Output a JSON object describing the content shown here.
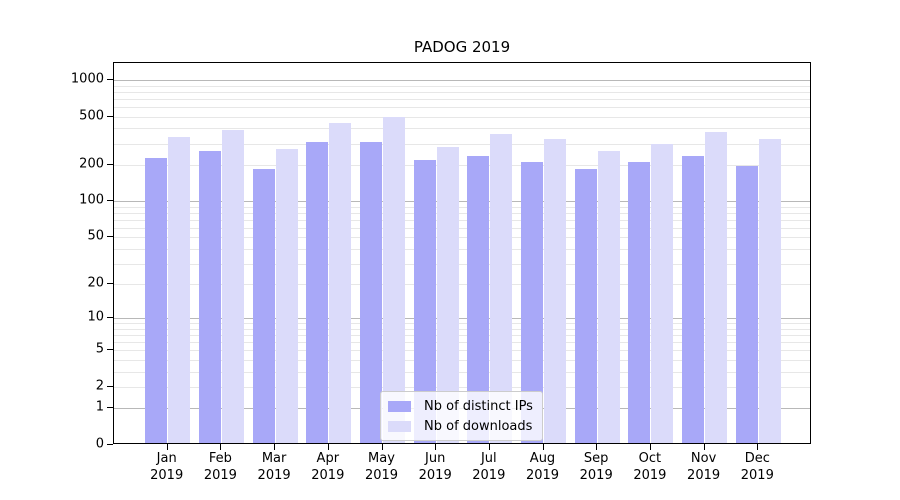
{
  "chart_data": {
    "type": "bar",
    "title": "PADOG 2019",
    "categories": [
      "Jan",
      "Feb",
      "Mar",
      "Apr",
      "May",
      "Jun",
      "Jul",
      "Aug",
      "Sep",
      "Oct",
      "Nov",
      "Dec"
    ],
    "category_year": "2019",
    "series": [
      {
        "name": "Nb of distinct IPs",
        "color": "#a8a8f8",
        "values": [
          230,
          260,
          185,
          310,
          310,
          220,
          238,
          210,
          185,
          210,
          236,
          195
        ]
      },
      {
        "name": "Nb of downloads",
        "color": "#dbdbfa",
        "values": [
          340,
          390,
          270,
          440,
          500,
          280,
          360,
          330,
          260,
          300,
          370,
          330
        ]
      }
    ],
    "yscale": "log(1+x)",
    "ylim": [
      0,
      1400
    ],
    "yticks": [
      0,
      1,
      2,
      5,
      10,
      20,
      50,
      100,
      200,
      500,
      1000
    ],
    "grid": {
      "major": [
        1,
        10,
        100,
        1000
      ],
      "minor": [
        2,
        3,
        4,
        5,
        6,
        7,
        8,
        9,
        20,
        30,
        40,
        50,
        60,
        70,
        80,
        90,
        200,
        300,
        400,
        500,
        600,
        700,
        800,
        900
      ]
    },
    "legend": {
      "position": "lower center"
    },
    "colors": {
      "grid_major": "#b8b8b8",
      "grid_minor": "#e7e7e7",
      "axis": "#000000",
      "legend_border": "#cccccc",
      "background": "#ffffff"
    }
  }
}
